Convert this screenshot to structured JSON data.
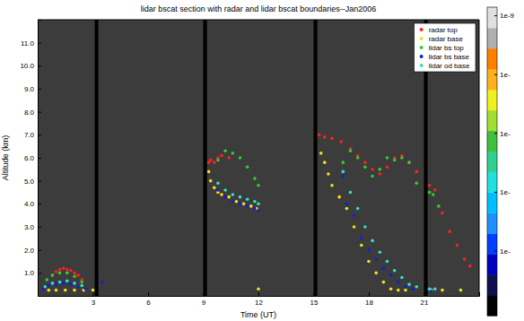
{
  "chart_data": {
    "type": "scatter",
    "title": "lidar bscat section with radar and lidar bscat boundaries--Jan2006",
    "x_label": "Time (UT)",
    "y_label": "Altitude (km)",
    "xlim": [
      0,
      24
    ],
    "ylim": [
      0,
      12
    ],
    "xticks": [
      3,
      6,
      9,
      12,
      15,
      18,
      21
    ],
    "yticks": [
      {
        "value": 1,
        "label": "1.0"
      },
      {
        "value": 2,
        "label": "2.0"
      },
      {
        "value": 3,
        "label": "3.0"
      },
      {
        "value": 4,
        "label": "4.0"
      },
      {
        "value": 5,
        "label": "5.0"
      },
      {
        "value": 6,
        "label": "6.0"
      },
      {
        "value": 7,
        "label": "7.0"
      },
      {
        "value": 8,
        "label": "8.0"
      },
      {
        "value": 9,
        "label": "9.0"
      },
      {
        "value": 10,
        "label": "10.0"
      },
      {
        "value": 11,
        "label": "11.0"
      }
    ],
    "grid": false,
    "marker": "circle",
    "legend": "upper right",
    "gaps": [
      [
        3.1,
        3.3
      ],
      [
        9.0,
        9.2
      ],
      [
        15.0,
        15.2
      ],
      [
        21.0,
        21.2
      ]
    ],
    "series": [
      {
        "name": "radar top",
        "color": "#ff2020",
        "x": [
          0.8,
          1.0,
          1.2,
          1.4,
          1.6,
          1.8,
          2.0,
          2.2,
          2.4,
          9.3,
          9.4,
          9.6,
          9.8,
          10.0,
          10.4,
          15.3,
          15.6,
          16.0,
          16.5,
          17.0,
          17.4,
          17.8,
          18.2,
          18.6,
          19.0,
          19.4,
          19.8,
          20.2,
          20.6,
          21.3,
          21.6,
          22.0,
          22.4,
          22.8,
          23.2,
          23.5
        ],
        "values": [
          0.9,
          1.05,
          1.15,
          1.2,
          1.15,
          1.1,
          1.0,
          0.9,
          0.7,
          5.8,
          5.9,
          5.8,
          6.0,
          6.1,
          6.0,
          7.0,
          6.9,
          6.85,
          6.7,
          6.4,
          6.1,
          5.8,
          5.5,
          5.3,
          5.6,
          6.0,
          6.1,
          5.8,
          5.4,
          4.8,
          4.6,
          3.6,
          2.8,
          2.2,
          1.6,
          1.3
        ]
      },
      {
        "name": "radar base",
        "color": "#f0e020",
        "x": [
          0.6,
          1.0,
          1.5,
          2.0,
          2.5,
          3.0,
          9.3,
          9.4,
          9.6,
          9.8,
          10.0,
          10.4,
          10.8,
          11.2,
          11.6,
          11.9,
          12.0,
          15.4,
          15.6,
          15.8,
          16.0,
          16.4,
          16.8,
          17.2,
          17.6,
          18.0,
          18.4,
          18.8,
          19.2,
          19.6,
          20.0,
          21.4,
          22.0,
          23.0
        ],
        "values": [
          0.25,
          0.25,
          0.25,
          0.25,
          0.25,
          0.25,
          5.4,
          5.0,
          4.7,
          4.5,
          4.4,
          4.3,
          4.1,
          4.0,
          3.9,
          3.8,
          0.3,
          6.2,
          5.8,
          5.3,
          4.8,
          4.3,
          3.8,
          3.0,
          2.2,
          1.5,
          1.0,
          0.6,
          0.3,
          0.25,
          0.25,
          0.25,
          0.25,
          0.25
        ]
      },
      {
        "name": "lidar bs top",
        "color": "#30d030",
        "x": [
          0.5,
          0.8,
          1.2,
          1.6,
          2.0,
          2.4,
          9.8,
          10.2,
          10.6,
          11.0,
          11.4,
          11.8,
          12.0,
          16.6,
          17.0,
          17.4,
          17.8,
          18.2,
          18.6,
          19.0,
          19.4,
          19.8,
          20.2,
          20.6,
          21.3,
          21.5,
          21.8
        ],
        "values": [
          0.7,
          0.9,
          1.0,
          1.0,
          0.85,
          0.6,
          5.9,
          6.3,
          6.2,
          6.0,
          5.6,
          5.1,
          4.8,
          5.8,
          6.3,
          6.0,
          5.6,
          5.2,
          5.5,
          6.0,
          5.9,
          6.0,
          5.8,
          4.9,
          4.5,
          4.4,
          3.9
        ]
      },
      {
        "name": "lidar bs base",
        "color": "#1020d0",
        "x": [
          0.3,
          0.6,
          1.0,
          1.4,
          1.8,
          2.2,
          2.6,
          3.5,
          9.8,
          10.2,
          10.6,
          11.0,
          11.4,
          11.8,
          12.0,
          16.6,
          16.8,
          17.2,
          17.6,
          18.0,
          18.4,
          18.8,
          19.2,
          19.6,
          20.0,
          20.4,
          21.4
        ],
        "values": [
          0.3,
          0.45,
          0.5,
          0.55,
          0.5,
          0.4,
          0.3,
          0.6,
          4.6,
          4.3,
          4.1,
          4.0,
          3.9,
          3.8,
          3.7,
          5.2,
          4.0,
          3.5,
          2.5,
          2.0,
          1.6,
          1.2,
          0.9,
          0.6,
          0.4,
          0.3,
          0.2
        ]
      },
      {
        "name": "lidar od base",
        "color": "#30e0d0",
        "x": [
          0.4,
          0.8,
          1.2,
          1.6,
          2.0,
          2.4,
          9.8,
          10.2,
          10.6,
          11.0,
          11.4,
          11.8,
          12.0,
          16.6,
          17.0,
          17.4,
          17.8,
          18.2,
          18.6,
          19.0,
          19.4,
          19.8,
          20.2,
          20.6,
          21.3,
          21.6
        ],
        "values": [
          0.4,
          0.55,
          0.6,
          0.65,
          0.55,
          0.45,
          4.9,
          4.6,
          4.4,
          4.3,
          4.2,
          4.1,
          4.0,
          5.4,
          4.5,
          3.8,
          3.0,
          2.4,
          1.9,
          1.5,
          1.1,
          0.8,
          0.5,
          0.4,
          0.3,
          0.3
        ]
      }
    ],
    "colorbar": {
      "lim": [
        8e-15,
        1.4e-09
      ],
      "ticks": [
        {
          "value": 1e-13,
          "label": "1e-"
        },
        {
          "value": 1e-12,
          "label": "1e-"
        },
        {
          "value": 1e-11,
          "label": "1e-"
        },
        {
          "value": 1e-10,
          "label": "1e-"
        },
        {
          "value": 1e-09,
          "label": "1e-9"
        }
      ],
      "colors": [
        "#000000",
        "#101050",
        "#0000c0",
        "#0040ff",
        "#1e90ff",
        "#00bfff",
        "#20e0e0",
        "#30d090",
        "#40c040",
        "#a0e030",
        "#f0f020",
        "#ffb020",
        "#ff8000",
        "#b0b0b0",
        "#e0e0e0"
      ]
    }
  }
}
